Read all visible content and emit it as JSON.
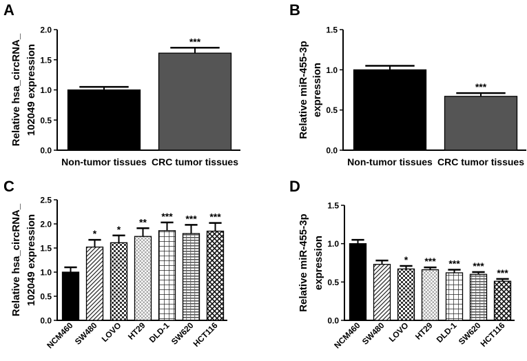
{
  "palette": {
    "axis": "#000000",
    "black_fill": "#000000",
    "grey_fill": "#555555",
    "light_fill": "#ffffff"
  },
  "chart_data": [
    {
      "id": "A",
      "panel_label": "A",
      "type": "bar",
      "ylabel": [
        "Relative hsa_circRNA_",
        "102049 expression"
      ],
      "ylim": [
        0,
        2.0
      ],
      "yticks": [
        "0.0",
        "0.5",
        "1.0",
        "1.5",
        "2.0"
      ],
      "categories": [
        "Non-tumor tissues",
        "CRC tumor tissues"
      ],
      "values": [
        1.0,
        1.61
      ],
      "errors": [
        0.05,
        0.09
      ],
      "significance": [
        "",
        "***"
      ],
      "fills": [
        "black",
        "grey"
      ]
    },
    {
      "id": "B",
      "panel_label": "B",
      "type": "bar",
      "ylabel": [
        "Relative miR-455-3p",
        "expression"
      ],
      "ylim": [
        0,
        1.5
      ],
      "yticks": [
        "0.0",
        "0.5",
        "1.0",
        "1.5"
      ],
      "categories": [
        "Non-tumor tissues",
        "CRC tumor tissues"
      ],
      "values": [
        1.0,
        0.67
      ],
      "errors": [
        0.05,
        0.04
      ],
      "significance": [
        "",
        "***"
      ],
      "fills": [
        "black",
        "grey"
      ]
    },
    {
      "id": "C",
      "panel_label": "C",
      "type": "bar",
      "ylabel": [
        "Relative hsa_circRNA_",
        "102049 expression"
      ],
      "ylim": [
        0,
        2.5
      ],
      "yticks": [
        "0.0",
        "0.5",
        "1.0",
        "1.5",
        "2.0",
        "2.5"
      ],
      "categories": [
        "NCM460",
        "SW480",
        "LOVO",
        "HT29",
        "DLD-1",
        "SW620",
        "HCT116"
      ],
      "values": [
        1.0,
        1.52,
        1.61,
        1.74,
        1.86,
        1.8,
        1.85
      ],
      "errors": [
        0.1,
        0.15,
        0.15,
        0.17,
        0.17,
        0.18,
        0.17
      ],
      "significance": [
        "",
        "*",
        "*",
        "**",
        "***",
        "***",
        "***"
      ],
      "fills": [
        "black",
        "diag",
        "check",
        "dots",
        "grid",
        "hbrick",
        "diamond"
      ]
    },
    {
      "id": "D",
      "panel_label": "D",
      "type": "bar",
      "ylabel": [
        "Relative miR-455-3p",
        "expression"
      ],
      "ylim": [
        0,
        1.5
      ],
      "yticks": [
        "0.0",
        "0.5",
        "1.0",
        "1.5"
      ],
      "categories": [
        "NCM460",
        "SW480",
        "LOVO",
        "HT29",
        "DLD-1",
        "SW620",
        "HCT116"
      ],
      "values": [
        1.0,
        0.73,
        0.67,
        0.66,
        0.62,
        0.6,
        0.51
      ],
      "errors": [
        0.05,
        0.05,
        0.04,
        0.03,
        0.04,
        0.03,
        0.03
      ],
      "significance": [
        "",
        "",
        "*",
        "***",
        "***",
        "***",
        "***"
      ],
      "fills": [
        "black",
        "diag",
        "check",
        "dots",
        "grid",
        "hbrick",
        "diamond"
      ]
    }
  ]
}
